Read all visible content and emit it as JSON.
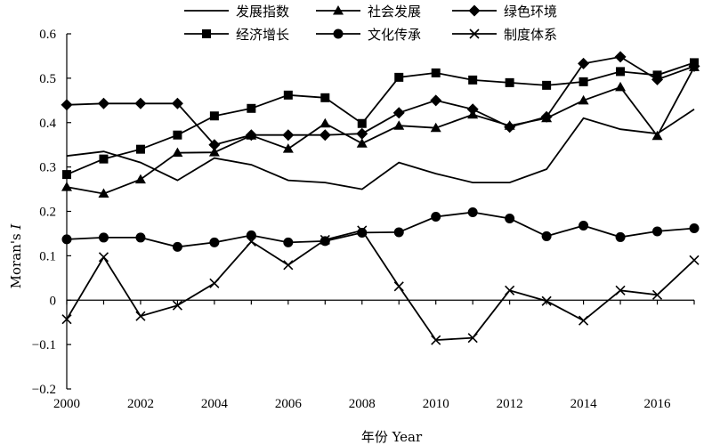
{
  "chart_data": {
    "type": "line",
    "xlabel": "年份 Year",
    "ylabel_prefix": "Moran's ",
    "ylabel_italic": "I",
    "x": [
      2000,
      2001,
      2002,
      2003,
      2004,
      2005,
      2006,
      2007,
      2008,
      2009,
      2010,
      2011,
      2012,
      2013,
      2014,
      2015,
      2016,
      2017
    ],
    "xlim": [
      2000,
      2017
    ],
    "ylim": [
      -0.2,
      0.6
    ],
    "xticks": [
      2000,
      2002,
      2004,
      2006,
      2008,
      2010,
      2012,
      2014,
      2016
    ],
    "yticks": [
      -0.2,
      -0.1,
      0,
      0.1,
      0.2,
      0.3,
      0.4,
      0.5,
      0.6
    ],
    "ytick_labels": [
      "−0.2",
      "−0.1",
      "0",
      "0.1",
      "0.2",
      "0.3",
      "0.4",
      "0.5",
      "0.6"
    ],
    "grid": false,
    "legend_position": "top",
    "series": [
      {
        "name": "发展指数",
        "marker": "none",
        "values": [
          0.325,
          0.335,
          0.31,
          0.27,
          0.32,
          0.305,
          0.27,
          0.265,
          0.25,
          0.31,
          0.285,
          0.265,
          0.265,
          0.295,
          0.41,
          0.385,
          0.375,
          0.43
        ]
      },
      {
        "name": "社会发展",
        "marker": "triangle",
        "values": [
          0.255,
          0.24,
          0.272,
          0.332,
          0.333,
          0.371,
          0.341,
          0.398,
          0.353,
          0.393,
          0.388,
          0.418,
          0.393,
          0.41,
          0.45,
          0.48,
          0.37,
          0.525
        ]
      },
      {
        "name": "绿色环境",
        "marker": "diamond",
        "values": [
          0.44,
          0.443,
          0.443,
          0.443,
          0.35,
          0.372,
          0.372,
          0.372,
          0.375,
          0.422,
          0.45,
          0.43,
          0.39,
          0.413,
          0.533,
          0.548,
          0.497,
          0.527
        ]
      },
      {
        "name": "经济增长",
        "marker": "square",
        "values": [
          0.283,
          0.318,
          0.34,
          0.372,
          0.415,
          0.432,
          0.462,
          0.456,
          0.398,
          0.502,
          0.512,
          0.496,
          0.49,
          0.484,
          0.492,
          0.515,
          0.507,
          0.535
        ]
      },
      {
        "name": "文化传承",
        "marker": "circle",
        "values": [
          0.137,
          0.141,
          0.141,
          0.12,
          0.13,
          0.146,
          0.13,
          0.133,
          0.152,
          0.153,
          0.188,
          0.198,
          0.184,
          0.144,
          0.168,
          0.142,
          0.155,
          0.162
        ]
      },
      {
        "name": "制度体系",
        "marker": "x",
        "values": [
          -0.043,
          0.097,
          -0.036,
          -0.012,
          0.038,
          0.132,
          0.079,
          0.136,
          0.157,
          0.031,
          -0.09,
          -0.085,
          0.022,
          -0.002,
          -0.046,
          0.022,
          0.012,
          0.09
        ]
      }
    ]
  }
}
